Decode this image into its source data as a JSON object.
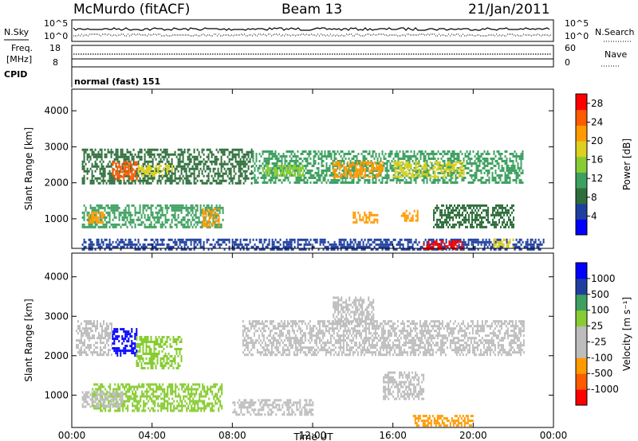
{
  "header": {
    "station": "McMurdo (fitACF)",
    "beam": "Beam 13",
    "date": "21/Jan/2011"
  },
  "top_panels": {
    "nsky_label": "N.Sky",
    "nsearch_label": "N.Search",
    "nsky_ticks": [
      "10^5",
      "10^0"
    ],
    "nsearch_ticks": [
      "10^5",
      "10^0"
    ],
    "freq_label_line1": "Freq.",
    "freq_label_line2": "[MHz]",
    "freq_ticks": [
      "18",
      "8"
    ],
    "nave_label": "Nave",
    "nave_ticks": [
      "60",
      "0"
    ],
    "cpid_label": "CPID",
    "cpid_value": "normal (fast) 151"
  },
  "colors": {
    "power_scale": [
      "#0000ff",
      "#1f3fa0",
      "#2e6e3b",
      "#3ea060",
      "#88cc33",
      "#ddd020",
      "#ff9a00",
      "#ff5a00",
      "#ff0000"
    ],
    "velocity_scale": [
      "#ff0000",
      "#ff5a00",
      "#ff9a00",
      "#bdbdbd",
      "#bdbdbd",
      "#88cc33",
      "#3ea060",
      "#1f3fa0",
      "#0000ff"
    ]
  },
  "chart_data": [
    {
      "type": "heatmap",
      "title": "",
      "xlabel": "Time UT",
      "ylabel": "Slant Range [km]",
      "x_ticks": [
        "00:00",
        "04:00",
        "08:00",
        "12:00",
        "16:00",
        "20:00",
        "00:00"
      ],
      "x_range_hours": [
        0,
        24
      ],
      "y_ticks": [
        "1000",
        "2000",
        "3000",
        "4000"
      ],
      "y_range_km": [
        180,
        4600
      ],
      "colorbar_label": "Power [dB]",
      "colorbar_ticks": [
        "4",
        "8",
        "12",
        "16",
        "20",
        "24",
        "28"
      ],
      "colorbar_range": [
        0,
        30
      ],
      "regions": [
        {
          "t": [
            0.5,
            9.0
          ],
          "r": [
            2000,
            2950
          ],
          "value": 8
        },
        {
          "t": [
            2.0,
            3.2
          ],
          "r": [
            2100,
            2600
          ],
          "value": 26
        },
        {
          "t": [
            3.3,
            5.0
          ],
          "r": [
            2200,
            2500
          ],
          "value": 18
        },
        {
          "t": [
            9.0,
            22.5
          ],
          "r": [
            2000,
            2900
          ],
          "value": 10
        },
        {
          "t": [
            9.5,
            11.5
          ],
          "r": [
            2200,
            2500
          ],
          "value": 16
        },
        {
          "t": [
            13.0,
            15.5
          ],
          "r": [
            2200,
            2600
          ],
          "value": 20
        },
        {
          "t": [
            16.0,
            19.5
          ],
          "r": [
            2200,
            2600
          ],
          "value": 18
        },
        {
          "t": [
            0.5,
            7.5
          ],
          "r": [
            800,
            1400
          ],
          "value": 10
        },
        {
          "t": [
            0.8,
            1.6
          ],
          "r": [
            900,
            1200
          ],
          "value": 22
        },
        {
          "t": [
            6.5,
            7.3
          ],
          "r": [
            800,
            1300
          ],
          "value": 20
        },
        {
          "t": [
            14.0,
            15.2
          ],
          "r": [
            900,
            1200
          ],
          "value": 22
        },
        {
          "t": [
            16.4,
            17.2
          ],
          "r": [
            950,
            1250
          ],
          "value": 20
        },
        {
          "t": [
            18.0,
            22.0
          ],
          "r": [
            800,
            1400
          ],
          "value": 8
        },
        {
          "t": [
            0.5,
            23.5
          ],
          "r": [
            180,
            450
          ],
          "value": 6
        },
        {
          "t": [
            17.5,
            19.5
          ],
          "r": [
            180,
            400
          ],
          "value": 28
        },
        {
          "t": [
            21.0,
            22.0
          ],
          "r": [
            200,
            450
          ],
          "value": 18
        }
      ]
    },
    {
      "type": "heatmap",
      "title": "",
      "xlabel": "Time UT",
      "ylabel": "Slant Range [km]",
      "x_ticks": [
        "00:00",
        "04:00",
        "08:00",
        "12:00",
        "16:00",
        "20:00",
        "00:00"
      ],
      "x_range_hours": [
        0,
        24
      ],
      "y_ticks": [
        "1000",
        "2000",
        "3000",
        "4000"
      ],
      "y_range_km": [
        180,
        4600
      ],
      "colorbar_label": "Velocity [m s⁻¹]",
      "colorbar_ticks": [
        "1000",
        "500",
        "100",
        "25",
        "-25",
        "-100",
        "-500",
        "-1000"
      ],
      "colorbar_range": [
        -1000,
        1000
      ],
      "regions": [
        {
          "t": [
            2.0,
            3.2
          ],
          "r": [
            2000,
            2700
          ],
          "value": 900
        },
        {
          "t": [
            0.2,
            2.0
          ],
          "r": [
            2000,
            2900
          ],
          "value": 0
        },
        {
          "t": [
            3.2,
            5.5
          ],
          "r": [
            1700,
            2500
          ],
          "value": 300
        },
        {
          "t": [
            8.5,
            22.5
          ],
          "r": [
            2000,
            2900
          ],
          "value": 0
        },
        {
          "t": [
            13.0,
            15.0
          ],
          "r": [
            2800,
            3500
          ],
          "value": -300
        },
        {
          "t": [
            1.0,
            7.5
          ],
          "r": [
            600,
            1300
          ],
          "value": 200
        },
        {
          "t": [
            0.5,
            2.5
          ],
          "r": [
            700,
            1100
          ],
          "value": 50
        },
        {
          "t": [
            15.5,
            17.5
          ],
          "r": [
            900,
            1600
          ],
          "value": -300
        },
        {
          "t": [
            8.0,
            12.0
          ],
          "r": [
            500,
            900
          ],
          "value": 60
        },
        {
          "t": [
            17.0,
            20.0
          ],
          "r": [
            200,
            500
          ],
          "value": -400
        }
      ]
    }
  ]
}
